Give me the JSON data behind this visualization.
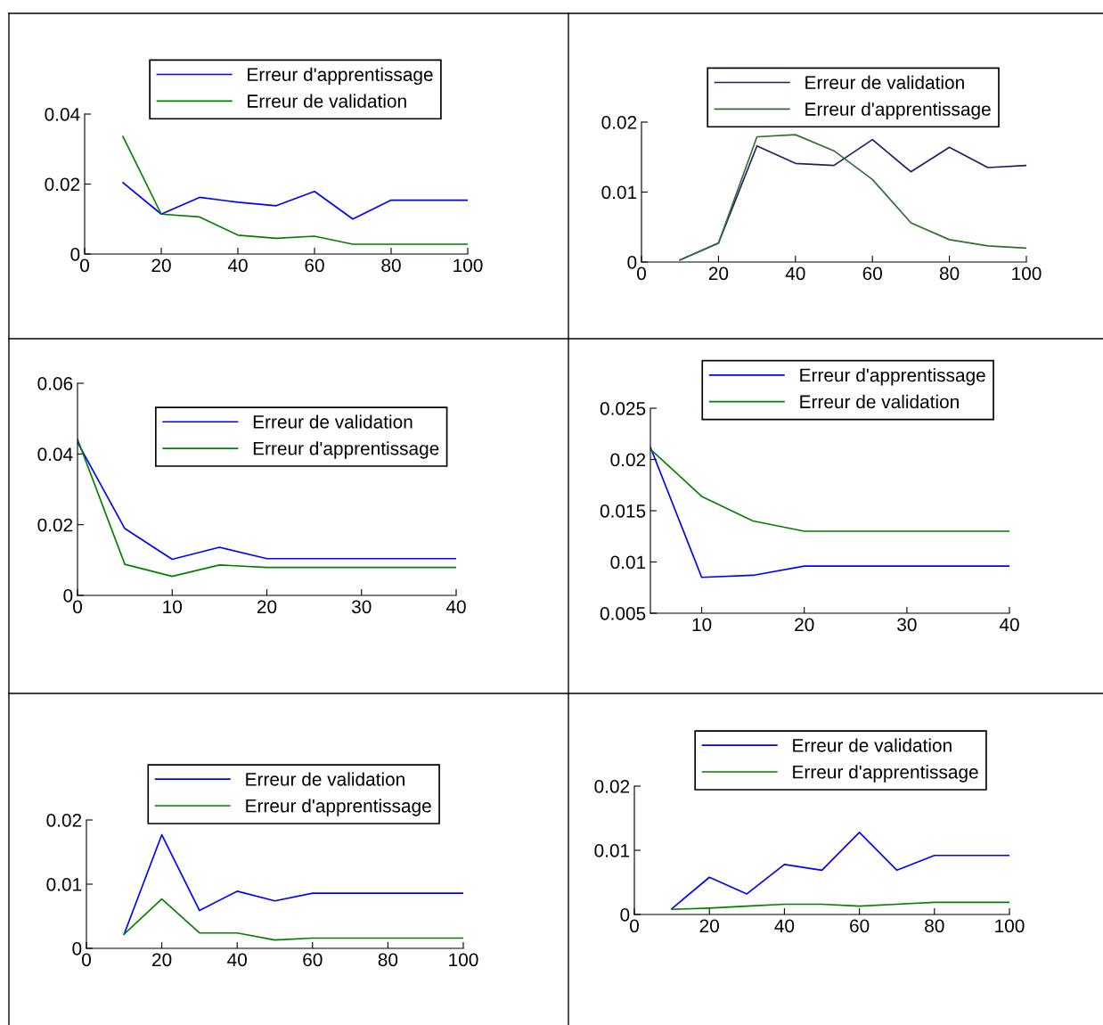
{
  "chart_data": [
    {
      "type": "line",
      "x": [
        10,
        20,
        30,
        40,
        50,
        60,
        70,
        80,
        90,
        100
      ],
      "xlim": [
        0,
        100
      ],
      "ylim": [
        0,
        0.04
      ],
      "xticks": [
        0,
        20,
        40,
        60,
        80,
        100
      ],
      "yticks": [
        0,
        0.02,
        0.04
      ],
      "legend": "top",
      "series": [
        {
          "name": "Erreur d'apprentissage",
          "color": "#0000ff",
          "values": [
            0.0204,
            0.0114,
            0.0162,
            0.0148,
            0.0138,
            0.0179,
            0.01,
            0.0154,
            0.0154,
            0.0154
          ]
        },
        {
          "name": "Erreur de validation",
          "color": "#008000",
          "values": [
            0.0336,
            0.0114,
            0.0106,
            0.0054,
            0.0045,
            0.0051,
            0.0028,
            0.0028,
            0.0028,
            0.0028
          ]
        }
      ]
    },
    {
      "type": "line",
      "x": [
        10,
        20,
        30,
        40,
        50,
        60,
        70,
        80,
        90,
        100
      ],
      "xlim": [
        0,
        100
      ],
      "ylim": [
        0,
        0.02
      ],
      "xticks": [
        0,
        20,
        40,
        60,
        80,
        100
      ],
      "yticks": [
        0,
        0.01,
        0.02
      ],
      "legend": "top",
      "series": [
        {
          "name": "Erreur de validation",
          "color": "#1f1f5f",
          "values": [
            0.0003,
            0.0027,
            0.0166,
            0.0141,
            0.0138,
            0.0175,
            0.0129,
            0.0164,
            0.0135,
            0.0138
          ]
        },
        {
          "name": "Erreur d'apprentissage",
          "color": "#2f6f2f",
          "values": [
            0.0003,
            0.0027,
            0.0179,
            0.0182,
            0.0159,
            0.0118,
            0.0056,
            0.0032,
            0.0023,
            0.002
          ]
        }
      ]
    },
    {
      "type": "line",
      "x": [
        0,
        5,
        10,
        15,
        20,
        25,
        30,
        35,
        40
      ],
      "xlim": [
        0,
        40
      ],
      "ylim": [
        0,
        0.06
      ],
      "xticks": [
        0,
        10,
        20,
        30,
        40
      ],
      "yticks": [
        0,
        0.02,
        0.04,
        0.06
      ],
      "legend": "top right",
      "series": [
        {
          "name": "Erreur de validation",
          "color": "#0000ff",
          "values": [
            0.0433,
            0.0189,
            0.0102,
            0.0136,
            0.0104,
            0.0104,
            0.0104,
            0.0104,
            0.0104
          ]
        },
        {
          "name": "Erreur d'apprentissage",
          "color": "#008000",
          "values": [
            0.0442,
            0.0088,
            0.0054,
            0.0086,
            0.0079,
            0.0079,
            0.0079,
            0.0079,
            0.0079
          ]
        }
      ]
    },
    {
      "type": "line",
      "x": [
        5,
        10,
        15,
        20,
        25,
        30,
        35,
        40
      ],
      "xlim": [
        5,
        40
      ],
      "ylim": [
        0.005,
        0.025
      ],
      "xticks": [
        10,
        20,
        30,
        40
      ],
      "yticks": [
        0.005,
        0.01,
        0.015,
        0.02,
        0.025
      ],
      "legend": "top",
      "series": [
        {
          "name": "Erreur d'apprentissage",
          "color": "#0000ff",
          "values": [
            0.0212,
            0.0085,
            0.0087,
            0.0096,
            0.0096,
            0.0096,
            0.0096,
            0.0096
          ]
        },
        {
          "name": "Erreur de validation",
          "color": "#008000",
          "values": [
            0.021,
            0.0164,
            0.014,
            0.013,
            0.013,
            0.013,
            0.013,
            0.013
          ]
        }
      ]
    },
    {
      "type": "line",
      "x": [
        10,
        20,
        30,
        40,
        50,
        60,
        70,
        80,
        90,
        100
      ],
      "xlim": [
        0,
        100
      ],
      "ylim": [
        0,
        0.02
      ],
      "xticks": [
        0,
        20,
        40,
        60,
        80,
        100
      ],
      "yticks": [
        0,
        0.01,
        0.02
      ],
      "legend": "top",
      "series": [
        {
          "name": "Erreur de validation",
          "color": "#0000ff",
          "values": [
            0.0022,
            0.0177,
            0.0059,
            0.0089,
            0.0074,
            0.0086,
            0.0086,
            0.0086,
            0.0086,
            0.0086
          ]
        },
        {
          "name": "Erreur d'apprentissage",
          "color": "#008000",
          "values": [
            0.0022,
            0.0077,
            0.0024,
            0.0024,
            0.0013,
            0.0016,
            0.0016,
            0.0016,
            0.0016,
            0.0016
          ]
        }
      ]
    },
    {
      "type": "line",
      "x": [
        10,
        20,
        30,
        40,
        50,
        60,
        70,
        80,
        90,
        100
      ],
      "xlim": [
        0,
        100
      ],
      "ylim": [
        0,
        0.02
      ],
      "xticks": [
        0,
        20,
        40,
        60,
        80,
        100
      ],
      "yticks": [
        0,
        0.01,
        0.02
      ],
      "legend": "top",
      "series": [
        {
          "name": "Erreur de validation",
          "color": "#0000ff",
          "values": [
            0.0009,
            0.0058,
            0.0032,
            0.0078,
            0.0069,
            0.0128,
            0.0069,
            0.0092,
            0.0092,
            0.0092
          ]
        },
        {
          "name": "Erreur d'apprentissage",
          "color": "#008000",
          "values": [
            0.0008,
            0.001,
            0.0013,
            0.0016,
            0.0016,
            0.0013,
            0.0016,
            0.0019,
            0.0019,
            0.0019
          ]
        }
      ]
    }
  ]
}
